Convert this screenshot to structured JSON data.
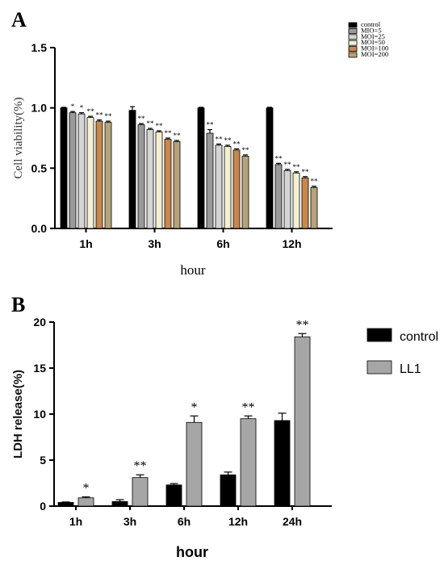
{
  "chart_data": [
    {
      "panel_label": "A",
      "type": "bar",
      "title": "",
      "xlabel": "hour",
      "ylabel": "Cell viability(%)",
      "ylim": [
        0,
        1.5
      ],
      "yticks": [
        "0.0",
        "0.5",
        "1.0",
        "1.5"
      ],
      "categories": [
        "1h",
        "3h",
        "6h",
        "12h"
      ],
      "legend_placement": "top-right",
      "series": [
        {
          "name": "control",
          "color": "#000000",
          "values": [
            1.0,
            0.98,
            1.0,
            1.0
          ],
          "errors": [
            0.005,
            0.03,
            0.005,
            0.005
          ],
          "sig": [
            "",
            "",
            "",
            ""
          ]
        },
        {
          "name": "MIO=5",
          "color": "#9a9a9a",
          "values": [
            0.96,
            0.86,
            0.79,
            0.53
          ],
          "errors": [
            0.01,
            0.01,
            0.03,
            0.01
          ],
          "sig": [
            "*",
            "**",
            "**",
            "**"
          ]
        },
        {
          "name": "MOI=25",
          "color": "#d4d4d4",
          "values": [
            0.95,
            0.82,
            0.69,
            0.48
          ],
          "errors": [
            0.01,
            0.01,
            0.01,
            0.01
          ],
          "sig": [
            "*",
            "**",
            "**",
            "**"
          ]
        },
        {
          "name": "MOI=50",
          "color": "#f3efd0",
          "values": [
            0.92,
            0.8,
            0.68,
            0.46
          ],
          "errors": [
            0.01,
            0.01,
            0.01,
            0.01
          ],
          "sig": [
            "**",
            "**",
            "**",
            "**"
          ]
        },
        {
          "name": "MOI=100",
          "color": "#c9874a",
          "values": [
            0.89,
            0.74,
            0.65,
            0.42
          ],
          "errors": [
            0.01,
            0.01,
            0.01,
            0.01
          ],
          "sig": [
            "**",
            "**",
            "**",
            "**"
          ]
        },
        {
          "name": "MOI=200",
          "color": "#b5a479",
          "values": [
            0.88,
            0.72,
            0.6,
            0.34
          ],
          "errors": [
            0.01,
            0.01,
            0.01,
            0.01
          ],
          "sig": [
            "**",
            "**",
            "**",
            "**"
          ]
        }
      ]
    },
    {
      "panel_label": "B",
      "type": "bar",
      "title": "",
      "xlabel": "hour",
      "ylabel": "LDH release(%)",
      "ylim": [
        0,
        20
      ],
      "yticks": [
        "0",
        "5",
        "10",
        "15",
        "20"
      ],
      "categories": [
        "1h",
        "3h",
        "6h",
        "12h",
        "24h"
      ],
      "legend_placement": "top-right",
      "series": [
        {
          "name": "control",
          "color": "#000000",
          "values": [
            0.4,
            0.5,
            2.3,
            3.4,
            9.3
          ],
          "errors": [
            0.05,
            0.2,
            0.15,
            0.3,
            0.8
          ],
          "sig": [
            "",
            "",
            "",
            "",
            ""
          ]
        },
        {
          "name": "LL1",
          "color": "#a6a6a6",
          "values": [
            0.9,
            3.1,
            9.1,
            9.5,
            18.4
          ],
          "errors": [
            0.1,
            0.3,
            0.7,
            0.3,
            0.35
          ],
          "sig": [
            "*",
            "**",
            "*",
            "**",
            "**"
          ]
        }
      ]
    }
  ]
}
